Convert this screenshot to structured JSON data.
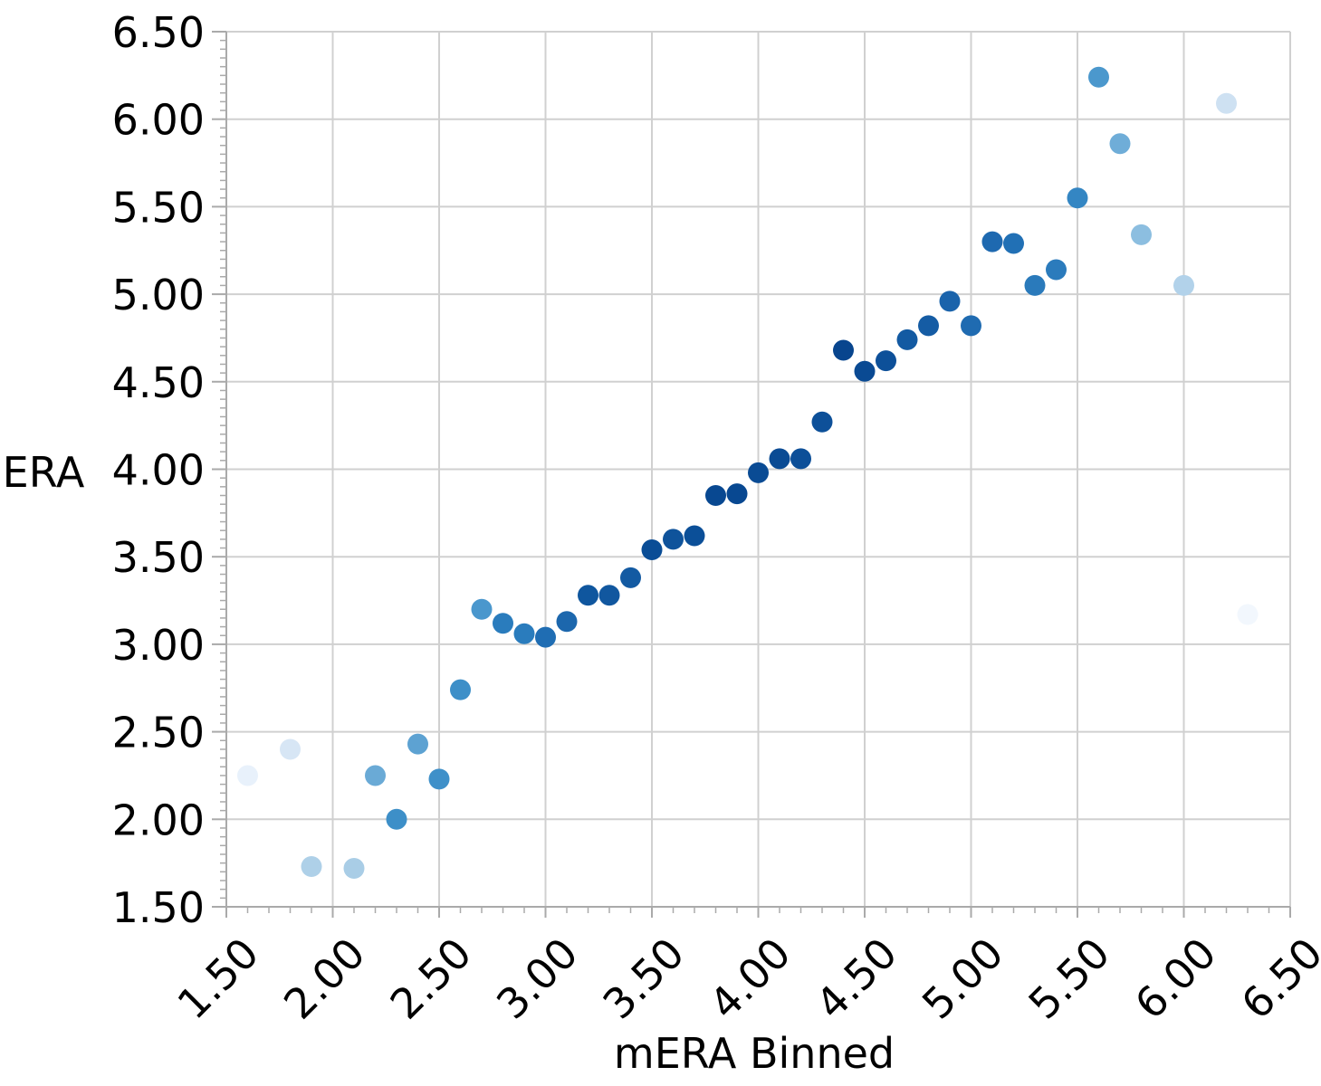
{
  "chart_data": {
    "type": "scatter",
    "title": "",
    "xlabel": "mERA Binned",
    "ylabel": "ERA",
    "xlim": [
      1.5,
      6.5
    ],
    "ylim": [
      1.5,
      6.5
    ],
    "grid": true,
    "legend": "none",
    "x_ticks": [
      "1.50",
      "2.00",
      "2.50",
      "3.00",
      "3.50",
      "4.00",
      "4.50",
      "5.00",
      "5.50",
      "6.00",
      "6.50"
    ],
    "y_ticks": [
      "1.50",
      "2.00",
      "2.50",
      "3.00",
      "3.50",
      "4.00",
      "4.50",
      "5.00",
      "5.50",
      "6.00",
      "6.50"
    ],
    "points": [
      {
        "x": 1.6,
        "y": 2.25,
        "color": "#e8f1fb"
      },
      {
        "x": 1.8,
        "y": 2.4,
        "color": "#d7e6f5"
      },
      {
        "x": 1.9,
        "y": 1.73,
        "color": "#aed0e8"
      },
      {
        "x": 2.1,
        "y": 1.72,
        "color": "#a9cde6"
      },
      {
        "x": 2.2,
        "y": 2.25,
        "color": "#6aaad6"
      },
      {
        "x": 2.3,
        "y": 2.0,
        "color": "#3d8fc8"
      },
      {
        "x": 2.4,
        "y": 2.43,
        "color": "#5da2d2"
      },
      {
        "x": 2.5,
        "y": 2.23,
        "color": "#3f90c9"
      },
      {
        "x": 2.6,
        "y": 2.74,
        "color": "#3d8fc8"
      },
      {
        "x": 2.7,
        "y": 3.2,
        "color": "#4a97cd"
      },
      {
        "x": 2.8,
        "y": 3.12,
        "color": "#2a7cbd"
      },
      {
        "x": 2.9,
        "y": 3.06,
        "color": "#2a7cbd"
      },
      {
        "x": 3.0,
        "y": 3.04,
        "color": "#1f6db3"
      },
      {
        "x": 3.1,
        "y": 3.13,
        "color": "#1c67ad"
      },
      {
        "x": 3.2,
        "y": 3.28,
        "color": "#0f569e"
      },
      {
        "x": 3.3,
        "y": 3.28,
        "color": "#11579f"
      },
      {
        "x": 3.4,
        "y": 3.38,
        "color": "#135aa2"
      },
      {
        "x": 3.5,
        "y": 3.54,
        "color": "#0a4d96"
      },
      {
        "x": 3.6,
        "y": 3.6,
        "color": "#0f539b"
      },
      {
        "x": 3.7,
        "y": 3.62,
        "color": "#0b4f98"
      },
      {
        "x": 3.8,
        "y": 3.85,
        "color": "#084891"
      },
      {
        "x": 3.9,
        "y": 3.86,
        "color": "#084891"
      },
      {
        "x": 4.0,
        "y": 3.98,
        "color": "#0a4b94"
      },
      {
        "x": 4.1,
        "y": 4.06,
        "color": "#0a4b94"
      },
      {
        "x": 4.2,
        "y": 4.06,
        "color": "#0d4f98"
      },
      {
        "x": 4.3,
        "y": 4.27,
        "color": "#0d5099"
      },
      {
        "x": 4.4,
        "y": 4.68,
        "color": "#08458e"
      },
      {
        "x": 4.5,
        "y": 4.56,
        "color": "#0a4a93"
      },
      {
        "x": 4.6,
        "y": 4.62,
        "color": "#0d5099"
      },
      {
        "x": 4.7,
        "y": 4.74,
        "color": "#135aa2"
      },
      {
        "x": 4.8,
        "y": 4.82,
        "color": "#155ca4"
      },
      {
        "x": 4.9,
        "y": 4.96,
        "color": "#1a63ab"
      },
      {
        "x": 5.0,
        "y": 4.82,
        "color": "#1f6bb1"
      },
      {
        "x": 5.1,
        "y": 5.3,
        "color": "#1e69b0"
      },
      {
        "x": 5.2,
        "y": 5.29,
        "color": "#2170b5"
      },
      {
        "x": 5.3,
        "y": 5.05,
        "color": "#2a7abb"
      },
      {
        "x": 5.4,
        "y": 5.14,
        "color": "#2b7bbc"
      },
      {
        "x": 5.5,
        "y": 5.55,
        "color": "#3486c3"
      },
      {
        "x": 5.6,
        "y": 6.24,
        "color": "#4b98cd"
      },
      {
        "x": 5.7,
        "y": 5.86,
        "color": "#6fadd8"
      },
      {
        "x": 5.8,
        "y": 5.34,
        "color": "#8cbee0"
      },
      {
        "x": 6.0,
        "y": 5.05,
        "color": "#b2d2ea"
      },
      {
        "x": 6.2,
        "y": 6.09,
        "color": "#cee1f2"
      },
      {
        "x": 6.3,
        "y": 3.17,
        "color": "#f2f7fd"
      }
    ]
  },
  "colors": {
    "grid": "#d0d0d0",
    "axis": "#aaaaaa",
    "text": "#000000"
  }
}
